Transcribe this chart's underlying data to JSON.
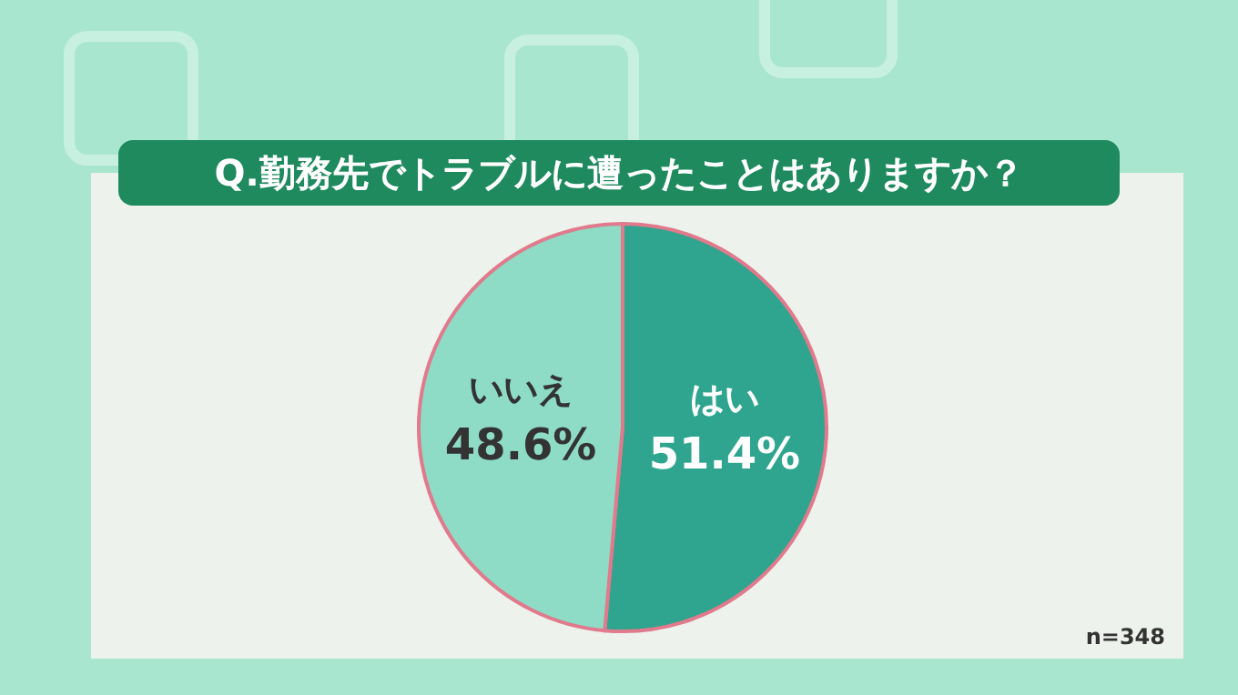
{
  "chart_data": {
    "type": "pie",
    "title": "Q.勤務先でトラブルに遭ったことはありますか？",
    "categories": [
      "はい",
      "いいえ"
    ],
    "values": [
      51.4,
      48.6
    ],
    "colors": [
      "#2fa58f",
      "#8edcc5"
    ],
    "value_labels": [
      "51.4%",
      "48.6%"
    ],
    "annotations": [
      "n=348"
    ]
  }
}
